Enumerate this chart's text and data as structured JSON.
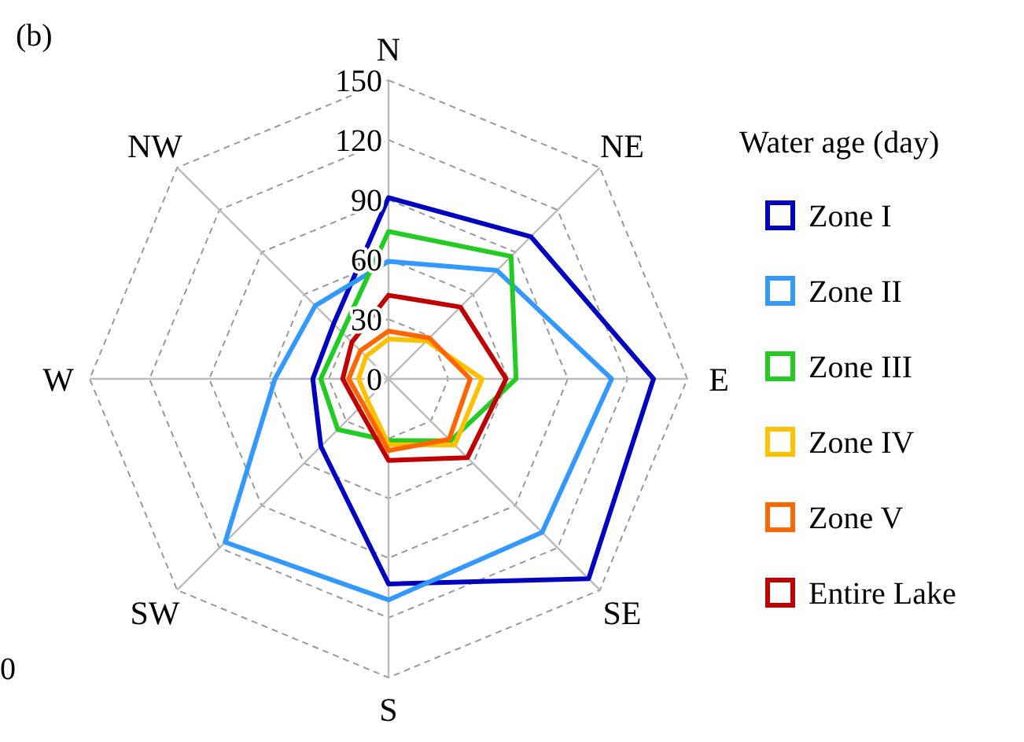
{
  "chart_data": {
    "type": "radar",
    "categories": [
      "N",
      "NE",
      "E",
      "SE",
      "S",
      "SW",
      "W",
      "NW"
    ],
    "ylim": [
      0,
      150
    ],
    "yticks": [
      0,
      30,
      60,
      90,
      120,
      150
    ],
    "grid": true,
    "legend": "right",
    "legend_title": "Water age (day)",
    "line_style": "solid",
    "marker": "none",
    "annotations": [
      "(b)",
      "0"
    ],
    "series": [
      {
        "name": "Zone I",
        "color": "#0000c0",
        "values": [
          91,
          101,
          133,
          142,
          103,
          48,
          38,
          39
        ]
      },
      {
        "name": "Zone II",
        "color": "#3399ff",
        "values": [
          59,
          77,
          112,
          109,
          111,
          116,
          57,
          52
        ]
      },
      {
        "name": "Zone III",
        "color": "#22cc22",
        "values": [
          74,
          87,
          64,
          44,
          31,
          36,
          34,
          33
        ]
      },
      {
        "name": "Zone IV",
        "color": "#ffc000",
        "values": [
          20,
          27,
          47,
          47,
          33,
          15,
          15,
          16
        ]
      },
      {
        "name": "Zone V",
        "color": "#ff6600",
        "values": [
          24,
          29,
          41,
          43,
          36,
          18,
          20,
          20
        ]
      },
      {
        "name": "Entire Lake",
        "color": "#c00000",
        "values": [
          42,
          51,
          59,
          56,
          41,
          21,
          23,
          26
        ]
      }
    ]
  }
}
